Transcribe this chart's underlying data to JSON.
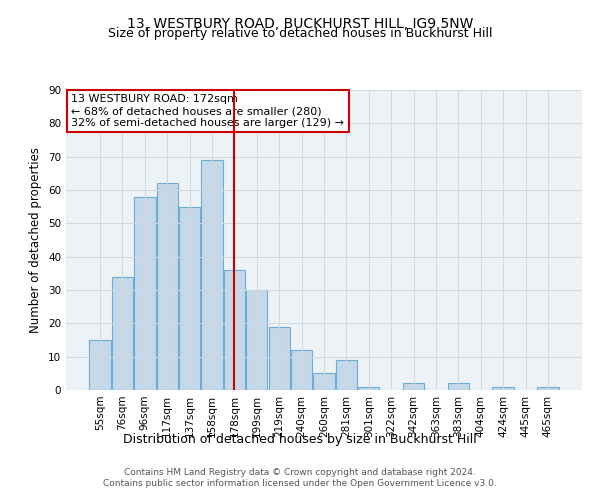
{
  "title": "13, WESTBURY ROAD, BUCKHURST HILL, IG9 5NW",
  "subtitle": "Size of property relative to detached houses in Buckhurst Hill",
  "xlabel": "Distribution of detached houses by size in Buckhurst Hill",
  "ylabel": "Number of detached properties",
  "categories": [
    "55sqm",
    "76sqm",
    "96sqm",
    "117sqm",
    "137sqm",
    "158sqm",
    "178sqm",
    "199sqm",
    "219sqm",
    "240sqm",
    "260sqm",
    "281sqm",
    "301sqm",
    "322sqm",
    "342sqm",
    "363sqm",
    "383sqm",
    "404sqm",
    "424sqm",
    "445sqm",
    "465sqm"
  ],
  "values": [
    15,
    34,
    58,
    62,
    55,
    69,
    36,
    30,
    19,
    12,
    5,
    9,
    1,
    0,
    2,
    0,
    2,
    0,
    1,
    0,
    1
  ],
  "bar_color": "#c5d8e8",
  "bar_edge_color": "#6aaed6",
  "bar_linewidth": 0.8,
  "vline_index": 6,
  "vline_color": "#cc0000",
  "annotation_lines": [
    "13 WESTBURY ROAD: 172sqm",
    "← 68% of detached houses are smaller (280)",
    "32% of semi-detached houses are larger (129) →"
  ],
  "box_edge_color": "#cc0000",
  "ylim": [
    0,
    90
  ],
  "yticks": [
    0,
    10,
    20,
    30,
    40,
    50,
    60,
    70,
    80,
    90
  ],
  "grid_color": "#d0d8e0",
  "bg_color": "#edf2f7",
  "footnote": "Contains HM Land Registry data © Crown copyright and database right 2024.\nContains public sector information licensed under the Open Government Licence v3.0.",
  "title_fontsize": 10,
  "subtitle_fontsize": 9,
  "xlabel_fontsize": 9,
  "ylabel_fontsize": 8.5,
  "tick_fontsize": 7.5,
  "annot_fontsize": 8,
  "footnote_fontsize": 6.5
}
